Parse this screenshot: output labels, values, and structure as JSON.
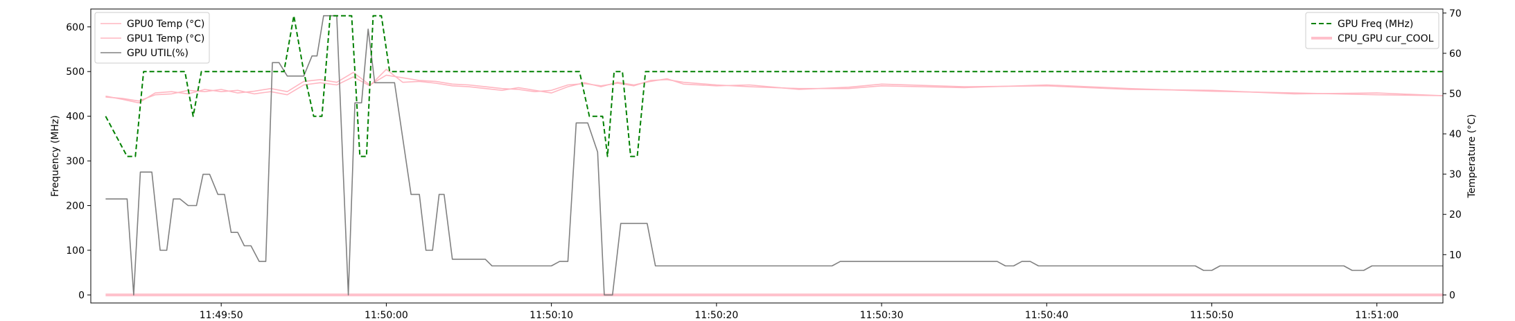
{
  "chart_data": {
    "type": "line",
    "x_unit": "seconds",
    "x_ticks": [
      {
        "t": 530,
        "label": "11:49:50"
      },
      {
        "t": 540,
        "label": "11:50:00"
      },
      {
        "t": 550,
        "label": "11:50:10"
      },
      {
        "t": 560,
        "label": "11:50:20"
      },
      {
        "t": 570,
        "label": "11:50:30"
      },
      {
        "t": 580,
        "label": "11:50:40"
      },
      {
        "t": 590,
        "label": "11:50:50"
      },
      {
        "t": 600,
        "label": "11:51:00"
      }
    ],
    "xlim": [
      522.1,
      604.0
    ],
    "y_left": {
      "label": "Frequency (MHz)",
      "lim": [
        -18,
        640
      ],
      "ticks": [
        0,
        100,
        200,
        300,
        400,
        500,
        600
      ]
    },
    "y_right": {
      "label": "Temperature (°C)",
      "lim": [
        -2,
        71
      ],
      "ticks": [
        0,
        10,
        20,
        30,
        40,
        50,
        60,
        70
      ]
    },
    "legend_left": {
      "position": "top-left",
      "entries": [
        "GPU0 Temp (°C)",
        "GPU1 Temp (°C)",
        "GPU UTIL(%)"
      ]
    },
    "legend_right": {
      "position": "top-right",
      "entries": [
        "GPU Freq (MHz)",
        "CPU_GPU cur_COOL"
      ]
    },
    "series": [
      {
        "name": "GPU0 Temp (°C)",
        "axis": "left",
        "color": "#ffb6c1",
        "style": "solid",
        "points": [
          [
            523,
            443
          ],
          [
            524,
            440
          ],
          [
            525,
            434
          ],
          [
            526,
            448
          ],
          [
            527,
            450
          ],
          [
            528,
            458
          ],
          [
            529,
            455
          ],
          [
            530,
            460
          ],
          [
            531,
            452
          ],
          [
            532,
            456
          ],
          [
            533,
            462
          ],
          [
            534,
            455
          ],
          [
            535,
            478
          ],
          [
            536,
            482
          ],
          [
            537,
            476
          ],
          [
            538,
            498
          ],
          [
            539,
            470
          ],
          [
            540,
            492
          ],
          [
            541,
            486
          ],
          [
            542,
            480
          ],
          [
            543,
            478
          ],
          [
            544,
            472
          ],
          [
            545,
            470
          ],
          [
            546,
            466
          ],
          [
            547,
            462
          ],
          [
            548,
            460
          ],
          [
            549,
            455
          ],
          [
            550,
            458
          ],
          [
            551,
            470
          ],
          [
            552,
            473
          ],
          [
            553,
            468
          ],
          [
            554,
            474
          ],
          [
            555,
            468
          ],
          [
            556,
            480
          ],
          [
            557,
            482
          ],
          [
            558,
            476
          ],
          [
            560,
            470
          ],
          [
            562,
            466
          ],
          [
            565,
            462
          ],
          [
            568,
            462
          ],
          [
            570,
            468
          ],
          [
            575,
            464
          ],
          [
            580,
            470
          ],
          [
            585,
            462
          ],
          [
            590,
            456
          ],
          [
            595,
            452
          ],
          [
            600,
            448
          ],
          [
            604,
            446
          ]
        ]
      },
      {
        "name": "GPU1 Temp (°C)",
        "axis": "left",
        "color": "#ffb6c1",
        "style": "solid",
        "points": [
          [
            523,
            445
          ],
          [
            524,
            438
          ],
          [
            525,
            430
          ],
          [
            526,
            452
          ],
          [
            527,
            455
          ],
          [
            528,
            450
          ],
          [
            529,
            460
          ],
          [
            530,
            455
          ],
          [
            531,
            458
          ],
          [
            532,
            450
          ],
          [
            533,
            455
          ],
          [
            534,
            448
          ],
          [
            535,
            470
          ],
          [
            536,
            475
          ],
          [
            537,
            470
          ],
          [
            538,
            488
          ],
          [
            539,
            468
          ],
          [
            540,
            505
          ],
          [
            541,
            476
          ],
          [
            542,
            478
          ],
          [
            543,
            474
          ],
          [
            544,
            468
          ],
          [
            545,
            466
          ],
          [
            546,
            462
          ],
          [
            547,
            458
          ],
          [
            548,
            464
          ],
          [
            549,
            458
          ],
          [
            550,
            452
          ],
          [
            551,
            466
          ],
          [
            552,
            475
          ],
          [
            553,
            466
          ],
          [
            554,
            476
          ],
          [
            555,
            470
          ],
          [
            556,
            478
          ],
          [
            557,
            484
          ],
          [
            558,
            472
          ],
          [
            560,
            468
          ],
          [
            562,
            470
          ],
          [
            565,
            460
          ],
          [
            568,
            465
          ],
          [
            570,
            472
          ],
          [
            575,
            466
          ],
          [
            580,
            468
          ],
          [
            585,
            460
          ],
          [
            590,
            458
          ],
          [
            595,
            450
          ],
          [
            600,
            452
          ],
          [
            604,
            446
          ]
        ]
      },
      {
        "name": "GPU UTIL(%)",
        "axis": "left",
        "color": "#808080",
        "style": "solid",
        "points": [
          [
            523,
            215
          ],
          [
            524.3,
            215
          ],
          [
            524.7,
            0
          ],
          [
            525.1,
            275
          ],
          [
            525.8,
            275
          ],
          [
            526.3,
            100
          ],
          [
            526.7,
            100
          ],
          [
            527.1,
            215
          ],
          [
            527.5,
            215
          ],
          [
            528,
            200
          ],
          [
            528.5,
            200
          ],
          [
            528.9,
            270
          ],
          [
            529.3,
            270
          ],
          [
            529.8,
            225
          ],
          [
            530.2,
            225
          ],
          [
            530.6,
            140
          ],
          [
            531,
            140
          ],
          [
            531.4,
            110
          ],
          [
            531.8,
            110
          ],
          [
            532.3,
            75
          ],
          [
            532.7,
            75
          ],
          [
            533.1,
            520
          ],
          [
            533.5,
            520
          ],
          [
            534,
            490
          ],
          [
            535,
            490
          ],
          [
            535.5,
            535
          ],
          [
            535.8,
            535
          ],
          [
            536.2,
            625
          ],
          [
            537,
            625
          ],
          [
            537.7,
            0
          ],
          [
            538.1,
            430
          ],
          [
            538.5,
            430
          ],
          [
            538.9,
            595
          ],
          [
            539.3,
            475
          ],
          [
            540.5,
            475
          ],
          [
            541.5,
            225
          ],
          [
            542,
            225
          ],
          [
            542.4,
            100
          ],
          [
            542.8,
            100
          ],
          [
            543.2,
            225
          ],
          [
            543.5,
            225
          ],
          [
            544,
            80
          ],
          [
            546,
            80
          ],
          [
            546.4,
            65
          ],
          [
            550,
            65
          ],
          [
            550.5,
            75
          ],
          [
            551,
            75
          ],
          [
            551.5,
            385
          ],
          [
            552.2,
            385
          ],
          [
            552.8,
            320
          ],
          [
            553.2,
            0
          ],
          [
            553.7,
            0
          ],
          [
            554.2,
            160
          ],
          [
            555.8,
            160
          ],
          [
            556.3,
            65
          ],
          [
            567,
            65
          ],
          [
            567.5,
            75
          ],
          [
            577,
            75
          ],
          [
            577.5,
            65
          ],
          [
            578,
            65
          ],
          [
            578.5,
            75
          ],
          [
            579,
            75
          ],
          [
            579.5,
            65
          ],
          [
            589,
            65
          ],
          [
            589.5,
            55
          ],
          [
            590,
            55
          ],
          [
            590.5,
            65
          ],
          [
            598,
            65
          ],
          [
            598.5,
            55
          ],
          [
            599.2,
            55
          ],
          [
            599.7,
            65
          ],
          [
            604,
            65
          ]
        ]
      },
      {
        "name": "GPU Freq (MHz)",
        "axis": "left",
        "color": "#008000",
        "style": "dashed",
        "points": [
          [
            523,
            400
          ],
          [
            524.3,
            310
          ],
          [
            524.8,
            310
          ],
          [
            525.3,
            500
          ],
          [
            527.8,
            500
          ],
          [
            528.3,
            400
          ],
          [
            528.8,
            500
          ],
          [
            533.8,
            500
          ],
          [
            534.4,
            625
          ],
          [
            535,
            500
          ],
          [
            535.6,
            400
          ],
          [
            536.1,
            400
          ],
          [
            536.6,
            625
          ],
          [
            537.9,
            625
          ],
          [
            538.4,
            310
          ],
          [
            538.8,
            310
          ],
          [
            539.2,
            625
          ],
          [
            539.7,
            625
          ],
          [
            540.2,
            500
          ],
          [
            551.7,
            500
          ],
          [
            552.3,
            400
          ],
          [
            553.1,
            400
          ],
          [
            553.4,
            310
          ],
          [
            553.8,
            500
          ],
          [
            554.3,
            500
          ],
          [
            554.8,
            310
          ],
          [
            555.2,
            310
          ],
          [
            555.7,
            500
          ],
          [
            604,
            500
          ]
        ]
      },
      {
        "name": "CPU_GPU cur_COOL",
        "axis": "right",
        "color": "#ffc0cb",
        "style": "solid-thick",
        "points": [
          [
            523,
            0
          ],
          [
            604,
            0
          ]
        ]
      }
    ]
  }
}
